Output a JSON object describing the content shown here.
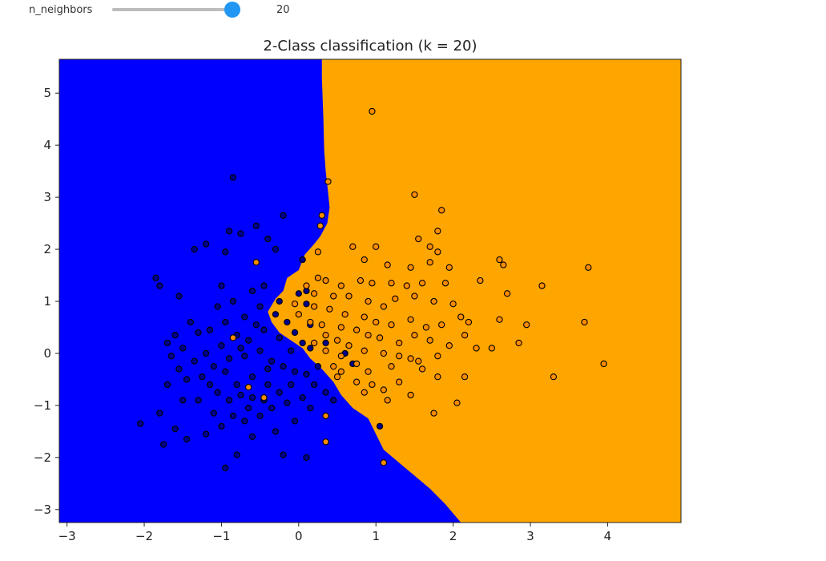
{
  "widget": {
    "label": "n_neighbors",
    "value": 20,
    "readout": "20",
    "min": 1,
    "max": 21,
    "handle_color": "#2196f3"
  },
  "chart_data": {
    "type": "scatter",
    "title": "2-Class classification (k = 20)",
    "xlabel": "",
    "ylabel": "",
    "xlim": [
      -3.1,
      4.95
    ],
    "ylim": [
      -3.25,
      5.65
    ],
    "xticks": [
      -3,
      -2,
      -1,
      0,
      1,
      2,
      3,
      4
    ],
    "yticks": [
      -3,
      -2,
      -1,
      0,
      1,
      2,
      3,
      4,
      5
    ],
    "grid": false,
    "legend": "none",
    "colors": {
      "region_class0": "#0000ff",
      "region_class1": "#ffa500",
      "point_class0": "#00008b",
      "point_class1": "#ff8c00",
      "point_edge": "#000000"
    },
    "decision_boundary": [
      [
        0.3,
        5.65
      ],
      [
        0.3,
        5.3
      ],
      [
        0.32,
        4.5
      ],
      [
        0.33,
        3.9
      ],
      [
        0.35,
        3.5
      ],
      [
        0.38,
        3.1
      ],
      [
        0.4,
        2.8
      ],
      [
        0.37,
        2.5
      ],
      [
        0.28,
        2.25
      ],
      [
        0.2,
        2.1
      ],
      [
        0.08,
        1.9
      ],
      [
        0.0,
        1.6
      ],
      [
        -0.15,
        1.45
      ],
      [
        -0.2,
        1.2
      ],
      [
        -0.3,
        1.05
      ],
      [
        -0.4,
        0.8
      ],
      [
        -0.35,
        0.6
      ],
      [
        -0.25,
        0.4
      ],
      [
        -0.1,
        0.25
      ],
      [
        0.05,
        0.1
      ],
      [
        0.15,
        -0.1
      ],
      [
        0.3,
        -0.3
      ],
      [
        0.45,
        -0.55
      ],
      [
        0.55,
        -0.8
      ],
      [
        0.7,
        -1.05
      ],
      [
        0.9,
        -1.25
      ],
      [
        1.0,
        -1.55
      ],
      [
        1.1,
        -1.85
      ],
      [
        1.3,
        -2.1
      ],
      [
        1.5,
        -2.35
      ],
      [
        1.7,
        -2.6
      ],
      [
        1.9,
        -2.9
      ],
      [
        2.1,
        -3.25
      ]
    ],
    "series": [
      {
        "class": 0,
        "points": [
          [
            -0.85,
            3.38
          ],
          [
            -0.9,
            2.35
          ],
          [
            -0.75,
            2.3
          ],
          [
            -0.55,
            2.45
          ],
          [
            -0.2,
            2.65
          ],
          [
            -1.35,
            2.0
          ],
          [
            -1.2,
            2.1
          ],
          [
            -0.95,
            1.95
          ],
          [
            -0.4,
            2.2
          ],
          [
            -0.3,
            2.0
          ],
          [
            -1.85,
            1.45
          ],
          [
            -1.8,
            1.3
          ],
          [
            -1.55,
            1.1
          ],
          [
            -1.0,
            1.3
          ],
          [
            -1.05,
            0.9
          ],
          [
            -0.85,
            1.0
          ],
          [
            -0.6,
            1.2
          ],
          [
            -0.45,
            1.3
          ],
          [
            -1.4,
            0.6
          ],
          [
            -1.3,
            0.4
          ],
          [
            -1.7,
            0.2
          ],
          [
            -1.6,
            0.35
          ],
          [
            -1.5,
            0.1
          ],
          [
            -1.15,
            0.45
          ],
          [
            -0.95,
            0.6
          ],
          [
            -0.7,
            0.7
          ],
          [
            -0.5,
            0.9
          ],
          [
            -0.3,
            0.75
          ],
          [
            -0.15,
            0.6
          ],
          [
            -0.05,
            0.4
          ],
          [
            0.05,
            0.2
          ],
          [
            0.15,
            0.1
          ],
          [
            -0.1,
            0.05
          ],
          [
            -0.25,
            0.3
          ],
          [
            -0.45,
            0.45
          ],
          [
            -0.65,
            0.25
          ],
          [
            -0.8,
            0.35
          ],
          [
            -1.0,
            0.15
          ],
          [
            -1.2,
            0.0
          ],
          [
            -1.35,
            -0.15
          ],
          [
            -1.55,
            -0.3
          ],
          [
            -1.65,
            -0.05
          ],
          [
            -1.45,
            -0.5
          ],
          [
            -1.25,
            -0.45
          ],
          [
            -1.1,
            -0.25
          ],
          [
            -0.9,
            -0.1
          ],
          [
            -0.7,
            -0.05
          ],
          [
            -0.5,
            0.05
          ],
          [
            -0.35,
            -0.15
          ],
          [
            -0.2,
            -0.25
          ],
          [
            -0.05,
            -0.35
          ],
          [
            0.1,
            -0.4
          ],
          [
            0.2,
            -0.6
          ],
          [
            0.35,
            -0.75
          ],
          [
            0.45,
            -0.9
          ],
          [
            -2.05,
            -1.35
          ],
          [
            -1.8,
            -1.15
          ],
          [
            -1.6,
            -1.45
          ],
          [
            -1.75,
            -1.75
          ],
          [
            -1.45,
            -1.65
          ],
          [
            -1.2,
            -1.55
          ],
          [
            -1.0,
            -1.4
          ],
          [
            -0.85,
            -1.2
          ],
          [
            -0.65,
            -1.05
          ],
          [
            -0.45,
            -0.9
          ],
          [
            -0.25,
            -0.75
          ],
          [
            -0.1,
            -0.6
          ],
          [
            0.05,
            -0.85
          ],
          [
            0.15,
            -1.05
          ],
          [
            -0.05,
            -1.3
          ],
          [
            -0.3,
            -1.5
          ],
          [
            -0.6,
            -1.6
          ],
          [
            -0.8,
            -1.95
          ],
          [
            -0.95,
            -2.2
          ],
          [
            -0.2,
            -1.95
          ],
          [
            0.1,
            -2.0
          ],
          [
            -1.3,
            -0.9
          ],
          [
            -1.05,
            -0.75
          ],
          [
            -0.8,
            -0.6
          ],
          [
            -0.6,
            -0.45
          ],
          [
            -0.4,
            -0.3
          ],
          [
            -1.5,
            -0.9
          ],
          [
            -1.7,
            -0.6
          ],
          [
            -0.9,
            -0.9
          ],
          [
            -0.7,
            -1.3
          ],
          [
            -0.5,
            -1.2
          ],
          [
            -0.35,
            -1.05
          ],
          [
            -0.15,
            -0.95
          ],
          [
            -1.1,
            -1.15
          ],
          [
            -0.75,
            -0.8
          ],
          [
            0.15,
            0.55
          ],
          [
            0.35,
            0.2
          ],
          [
            0.25,
            -0.25
          ],
          [
            1.05,
            -1.4
          ],
          [
            0.6,
            0.0
          ],
          [
            0.7,
            -0.2
          ],
          [
            -0.55,
            0.55
          ],
          [
            -0.75,
            0.1
          ],
          [
            -0.95,
            -0.35
          ],
          [
            -1.15,
            -0.6
          ],
          [
            -0.4,
            -0.6
          ],
          [
            -0.6,
            -0.85
          ],
          [
            0.1,
            0.95
          ],
          [
            0.1,
            1.2
          ],
          [
            0.0,
            1.15
          ],
          [
            -0.25,
            1.0
          ],
          [
            0.05,
            1.8
          ]
        ]
      },
      {
        "class": 1,
        "points": [
          [
            0.95,
            4.65
          ],
          [
            0.38,
            3.3
          ],
          [
            0.3,
            2.65
          ],
          [
            0.28,
            2.45
          ],
          [
            1.5,
            3.05
          ],
          [
            1.85,
            2.75
          ],
          [
            1.8,
            2.35
          ],
          [
            1.55,
            2.2
          ],
          [
            1.7,
            2.05
          ],
          [
            1.8,
            1.95
          ],
          [
            0.7,
            2.05
          ],
          [
            1.0,
            2.05
          ],
          [
            0.85,
            1.8
          ],
          [
            1.15,
            1.7
          ],
          [
            1.45,
            1.65
          ],
          [
            1.7,
            1.75
          ],
          [
            1.95,
            1.65
          ],
          [
            2.6,
            1.8
          ],
          [
            2.65,
            1.7
          ],
          [
            3.75,
            1.65
          ],
          [
            0.25,
            1.45
          ],
          [
            0.35,
            1.4
          ],
          [
            0.55,
            1.3
          ],
          [
            0.8,
            1.4
          ],
          [
            0.95,
            1.35
          ],
          [
            1.2,
            1.35
          ],
          [
            1.4,
            1.3
          ],
          [
            1.6,
            1.35
          ],
          [
            1.9,
            1.35
          ],
          [
            2.35,
            1.4
          ],
          [
            3.15,
            1.3
          ],
          [
            2.7,
            1.15
          ],
          [
            0.1,
            1.3
          ],
          [
            0.2,
            1.15
          ],
          [
            0.45,
            1.1
          ],
          [
            0.65,
            1.1
          ],
          [
            0.9,
            1.0
          ],
          [
            1.1,
            0.9
          ],
          [
            1.25,
            1.05
          ],
          [
            1.5,
            1.1
          ],
          [
            1.75,
            1.0
          ],
          [
            2.0,
            0.95
          ],
          [
            -0.05,
            0.95
          ],
          [
            0.2,
            0.9
          ],
          [
            0.4,
            0.85
          ],
          [
            0.6,
            0.75
          ],
          [
            0.85,
            0.7
          ],
          [
            1.0,
            0.6
          ],
          [
            1.2,
            0.55
          ],
          [
            1.45,
            0.65
          ],
          [
            1.65,
            0.5
          ],
          [
            1.85,
            0.55
          ],
          [
            2.1,
            0.7
          ],
          [
            2.2,
            0.6
          ],
          [
            2.6,
            0.65
          ],
          [
            2.95,
            0.55
          ],
          [
            3.7,
            0.6
          ],
          [
            0.0,
            0.75
          ],
          [
            0.15,
            0.6
          ],
          [
            0.3,
            0.55
          ],
          [
            0.55,
            0.5
          ],
          [
            0.75,
            0.45
          ],
          [
            0.9,
            0.35
          ],
          [
            1.05,
            0.3
          ],
          [
            1.3,
            0.2
          ],
          [
            1.5,
            0.35
          ],
          [
            1.7,
            0.25
          ],
          [
            1.95,
            0.15
          ],
          [
            2.15,
            0.35
          ],
          [
            0.35,
            0.35
          ],
          [
            0.5,
            0.25
          ],
          [
            0.65,
            0.15
          ],
          [
            0.85,
            0.05
          ],
          [
            1.1,
            0.0
          ],
          [
            1.3,
            -0.05
          ],
          [
            1.55,
            -0.15
          ],
          [
            1.8,
            -0.05
          ],
          [
            2.3,
            0.1
          ],
          [
            2.5,
            0.1
          ],
          [
            2.85,
            0.2
          ],
          [
            0.35,
            0.05
          ],
          [
            0.55,
            -0.05
          ],
          [
            0.75,
            -0.2
          ],
          [
            0.9,
            -0.35
          ],
          [
            1.2,
            -0.25
          ],
          [
            1.45,
            -0.1
          ],
          [
            1.6,
            -0.3
          ],
          [
            3.3,
            -0.45
          ],
          [
            3.95,
            -0.2
          ],
          [
            0.55,
            -0.35
          ],
          [
            0.75,
            -0.55
          ],
          [
            0.95,
            -0.6
          ],
          [
            1.1,
            -0.7
          ],
          [
            1.3,
            -0.55
          ],
          [
            1.8,
            -0.45
          ],
          [
            2.15,
            -0.45
          ],
          [
            0.85,
            -0.75
          ],
          [
            1.15,
            -0.9
          ],
          [
            1.45,
            -0.8
          ],
          [
            2.05,
            -0.95
          ],
          [
            1.75,
            -1.15
          ],
          [
            0.5,
            -0.45
          ],
          [
            -0.85,
            0.3
          ],
          [
            -0.55,
            1.75
          ],
          [
            -0.45,
            -0.85
          ],
          [
            0.35,
            -1.2
          ],
          [
            -0.65,
            -0.65
          ],
          [
            0.35,
            -1.7
          ],
          [
            1.1,
            -2.1
          ],
          [
            0.45,
            -0.25
          ],
          [
            0.2,
            0.2
          ],
          [
            0.25,
            1.95
          ]
        ]
      }
    ]
  }
}
